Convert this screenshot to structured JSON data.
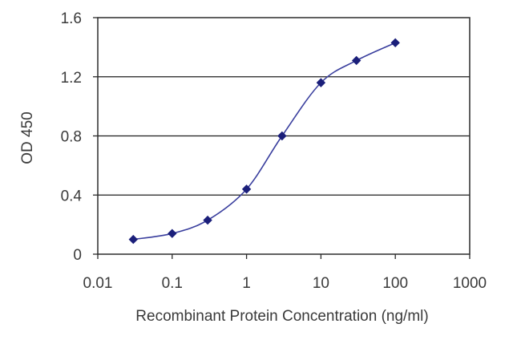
{
  "chart_data": {
    "type": "line",
    "title": "",
    "xlabel": "Recombinant Protein Concentration (ng/ml)",
    "ylabel": "OD 450",
    "x_scale": "log",
    "xlim": [
      0.01,
      1000
    ],
    "ylim": [
      0,
      1.6
    ],
    "x_ticks": [
      0.01,
      0.1,
      1,
      10,
      100,
      1000
    ],
    "x_tick_labels": [
      "0.01",
      "0.1",
      "1",
      "10",
      "100",
      "1000"
    ],
    "y_ticks": [
      0,
      0.4,
      0.8,
      1.2,
      1.6
    ],
    "y_tick_labels": [
      "0",
      "0.4",
      "0.8",
      "1.2",
      "1.6"
    ],
    "grid": "horizontal",
    "legend": "none",
    "series": [
      {
        "x": [
          0.03,
          0.1,
          0.3,
          1,
          3,
          10,
          30,
          100
        ],
        "y": [
          0.1,
          0.14,
          0.23,
          0.44,
          0.8,
          1.16,
          1.31,
          1.43
        ],
        "color": "#3a3f9e",
        "marker": "diamond",
        "marker_color": "#1b1f7a"
      }
    ]
  }
}
